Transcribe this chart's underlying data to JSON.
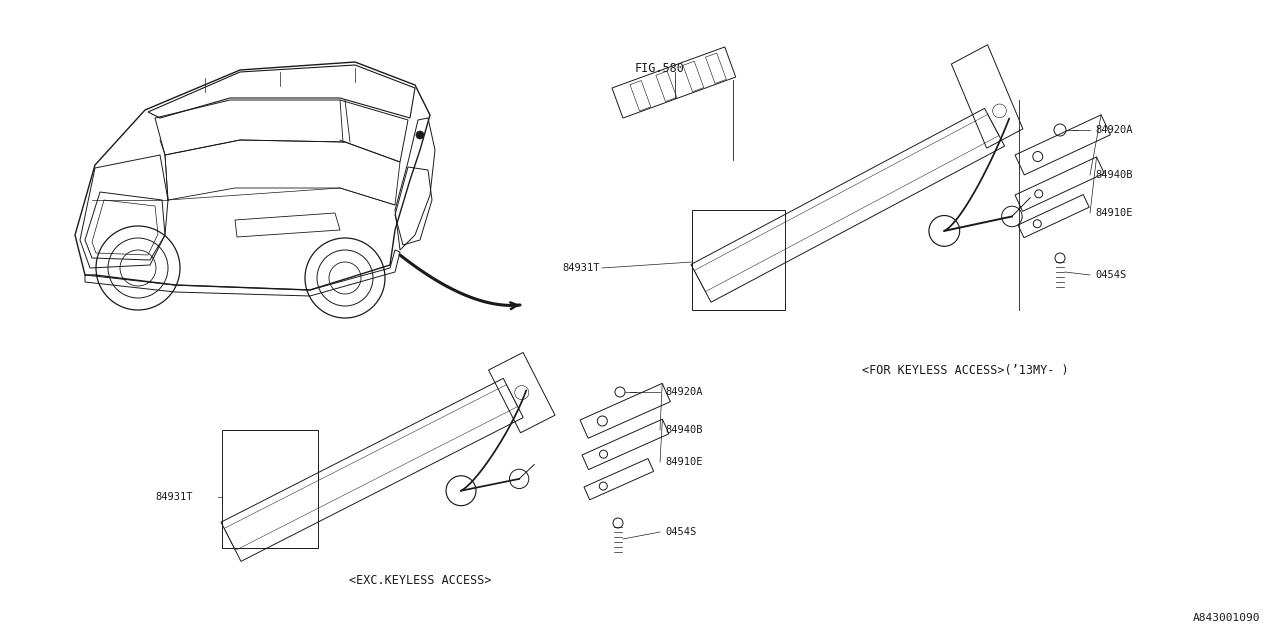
{
  "bg_color": "#ffffff",
  "line_color": "#1a1a1a",
  "fig_width": 12.8,
  "fig_height": 6.4,
  "diagram_code": "A843001090",
  "fig_ref": "FIG.580",
  "caption_top": "<FOR KEYLESS ACCESS>(’13MY- )",
  "caption_bot": "<EXC.KEYLESS ACCESS>",
  "font_size_label": 7.5,
  "font_size_caption": 8.5,
  "font_size_figref": 8.5,
  "font_size_code": 8
}
